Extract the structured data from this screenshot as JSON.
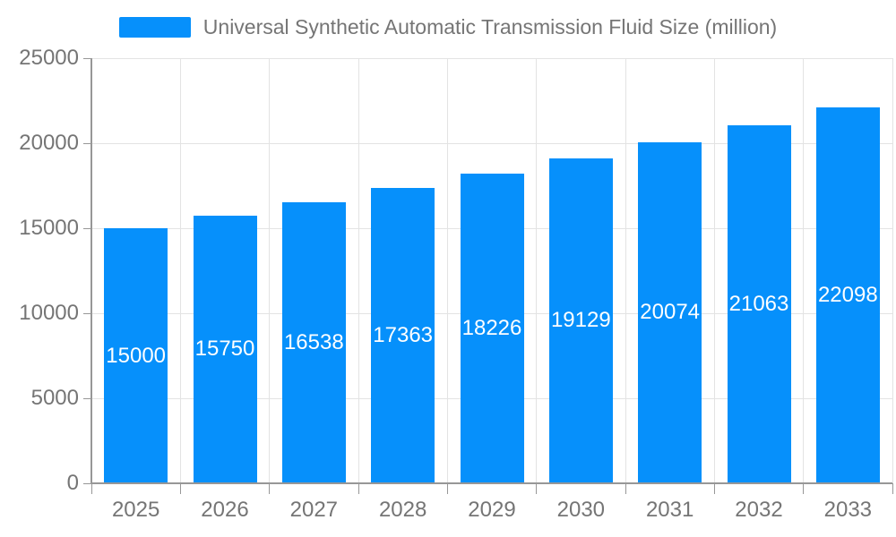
{
  "chart_data": {
    "type": "bar",
    "title": "Universal Synthetic Automatic Transmission Fluid Size (million)",
    "categories": [
      "2025",
      "2026",
      "2027",
      "2028",
      "2029",
      "2030",
      "2031",
      "2032",
      "2033"
    ],
    "values": [
      15000,
      15750,
      16538,
      17363,
      18226,
      19129,
      20074,
      21063,
      22098
    ],
    "bar_labels": [
      "15000",
      "15750",
      "16538",
      "17363",
      "18226",
      "19129",
      "20074",
      "21063",
      "22098"
    ],
    "xlabel": "",
    "ylabel": "",
    "ylim": [
      0,
      25000
    ],
    "yticks": [
      0,
      5000,
      10000,
      15000,
      20000,
      25000
    ],
    "ytick_labels": [
      "0",
      "5000",
      "10000",
      "15000",
      "20000",
      "25000"
    ],
    "grid": true,
    "legend_position": "top-center",
    "colors": {
      "bar": "#0690fb",
      "bar_value_text": "#ffffff",
      "axis_text": "#757575",
      "axis_line": "#979797",
      "grid_line": "#e3e3e3",
      "background": "#ffffff"
    }
  }
}
